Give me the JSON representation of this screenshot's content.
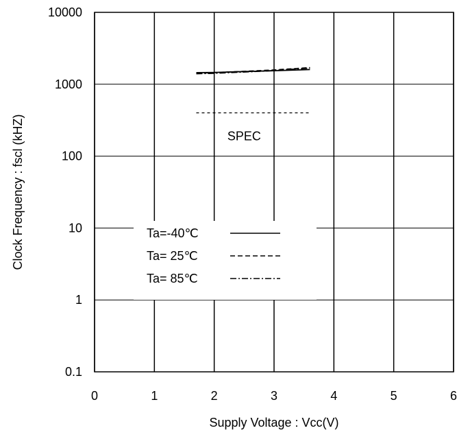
{
  "chart_data": {
    "type": "line",
    "title": "",
    "xlabel": "Supply Voltage : Vcc(V)",
    "ylabel": "Clock Frequency : fscl (kHZ)",
    "xlim": [
      0,
      6
    ],
    "ylim": [
      0.1,
      10000
    ],
    "y_scale": "log",
    "grid": true,
    "x_ticks": [
      "0",
      "1",
      "2",
      "3",
      "4",
      "5",
      "6"
    ],
    "y_ticks": [
      "0.1",
      "1",
      "10",
      "100",
      "1000",
      "10000"
    ],
    "series": [
      {
        "name": "Ta=-40℃",
        "style": "solid",
        "x": [
          1.7,
          2.0,
          2.5,
          3.0,
          3.6
        ],
        "y": [
          1450,
          1460,
          1500,
          1540,
          1600
        ]
      },
      {
        "name": "Ta= 25℃",
        "style": "dashed",
        "x": [
          1.7,
          2.0,
          2.5,
          3.0,
          3.6
        ],
        "y": [
          1430,
          1450,
          1510,
          1580,
          1700
        ]
      },
      {
        "name": "Ta= 85℃",
        "style": "dashdot",
        "x": [
          1.7,
          2.0,
          2.5,
          3.0,
          3.6
        ],
        "y": [
          1400,
          1420,
          1480,
          1550,
          1680
        ]
      }
    ],
    "reference_lines": [
      {
        "label": "SPEC",
        "style": "dotted",
        "x": [
          1.7,
          3.6
        ],
        "y": [
          400,
          400
        ]
      }
    ],
    "legend_position": "lower-center"
  }
}
